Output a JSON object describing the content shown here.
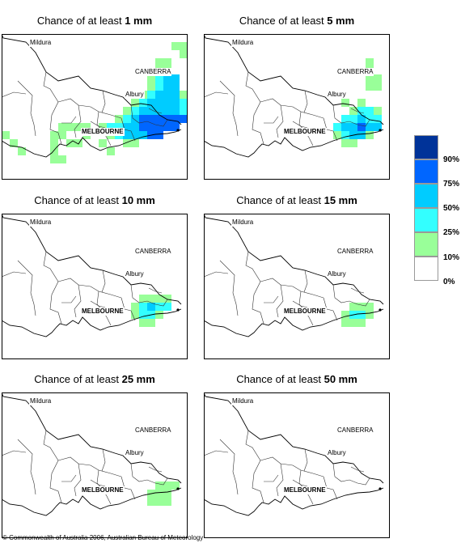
{
  "panels": [
    {
      "title_prefix": "Chance of at least ",
      "amount": "1 mm",
      "cells": [
        [
          21,
          1,
          0
        ],
        [
          22,
          1,
          0
        ],
        [
          22,
          2,
          0
        ],
        [
          19,
          3,
          0
        ],
        [
          20,
          3,
          0
        ],
        [
          19,
          4,
          0
        ],
        [
          20,
          4,
          0
        ],
        [
          18,
          5,
          0
        ],
        [
          18,
          6,
          0
        ],
        [
          19,
          5,
          1
        ],
        [
          20,
          5,
          2
        ],
        [
          21,
          5,
          2
        ],
        [
          19,
          6,
          1
        ],
        [
          20,
          6,
          2
        ],
        [
          21,
          6,
          2
        ],
        [
          17,
          7,
          0
        ],
        [
          18,
          7,
          1
        ],
        [
          19,
          7,
          2
        ],
        [
          20,
          7,
          2
        ],
        [
          21,
          7,
          2
        ],
        [
          22,
          7,
          0
        ],
        [
          16,
          8,
          0
        ],
        [
          17,
          8,
          1
        ],
        [
          18,
          8,
          2
        ],
        [
          19,
          8,
          2
        ],
        [
          20,
          8,
          2
        ],
        [
          21,
          8,
          2
        ],
        [
          22,
          8,
          1
        ],
        [
          15,
          9,
          0
        ],
        [
          16,
          9,
          1
        ],
        [
          17,
          9,
          2
        ],
        [
          18,
          9,
          2
        ],
        [
          19,
          9,
          2
        ],
        [
          20,
          9,
          2
        ],
        [
          21,
          9,
          2
        ],
        [
          22,
          9,
          1
        ],
        [
          14,
          10,
          0
        ],
        [
          15,
          10,
          1
        ],
        [
          16,
          10,
          2
        ],
        [
          17,
          10,
          3
        ],
        [
          18,
          10,
          3
        ],
        [
          19,
          10,
          3
        ],
        [
          20,
          10,
          3
        ],
        [
          21,
          10,
          3
        ],
        [
          22,
          10,
          3
        ],
        [
          7,
          11,
          0
        ],
        [
          8,
          11,
          0
        ],
        [
          9,
          11,
          0
        ],
        [
          10,
          11,
          0
        ],
        [
          12,
          11,
          0
        ],
        [
          13,
          11,
          1
        ],
        [
          14,
          11,
          1
        ],
        [
          15,
          11,
          2
        ],
        [
          16,
          11,
          2
        ],
        [
          17,
          11,
          3
        ],
        [
          18,
          11,
          3
        ],
        [
          19,
          11,
          3
        ],
        [
          20,
          11,
          3
        ],
        [
          21,
          11,
          3
        ],
        [
          0,
          12,
          0
        ],
        [
          6,
          12,
          0
        ],
        [
          7,
          12,
          0
        ],
        [
          10,
          12,
          0
        ],
        [
          13,
          12,
          0
        ],
        [
          14,
          12,
          1
        ],
        [
          15,
          12,
          2
        ],
        [
          16,
          12,
          2
        ],
        [
          17,
          12,
          2
        ],
        [
          18,
          12,
          3
        ],
        [
          19,
          12,
          3
        ],
        [
          1,
          13,
          0
        ],
        [
          6,
          13,
          0
        ],
        [
          8,
          13,
          0
        ],
        [
          9,
          13,
          0
        ],
        [
          12,
          13,
          0
        ],
        [
          15,
          13,
          0
        ],
        [
          16,
          13,
          0
        ],
        [
          2,
          14,
          0
        ],
        [
          6,
          14,
          0
        ],
        [
          13,
          14,
          0
        ],
        [
          6,
          15,
          0
        ],
        [
          7,
          15,
          0
        ]
      ]
    },
    {
      "title_prefix": "Chance of at least ",
      "amount": "5 mm",
      "cells": [
        [
          20,
          3,
          0
        ],
        [
          20,
          4,
          0
        ],
        [
          20,
          5,
          0
        ],
        [
          21,
          5,
          0
        ],
        [
          20,
          6,
          0
        ],
        [
          21,
          6,
          0
        ],
        [
          17,
          8,
          0
        ],
        [
          19,
          8,
          0
        ],
        [
          18,
          9,
          0
        ],
        [
          19,
          9,
          1
        ],
        [
          20,
          9,
          1
        ],
        [
          21,
          9,
          0
        ],
        [
          17,
          10,
          1
        ],
        [
          18,
          10,
          1
        ],
        [
          19,
          10,
          2
        ],
        [
          20,
          10,
          1
        ],
        [
          21,
          10,
          1
        ],
        [
          16,
          11,
          1
        ],
        [
          17,
          11,
          2
        ],
        [
          18,
          11,
          2
        ],
        [
          19,
          11,
          3
        ],
        [
          20,
          11,
          2
        ],
        [
          21,
          11,
          2
        ],
        [
          16,
          12,
          0
        ],
        [
          17,
          12,
          1
        ],
        [
          18,
          12,
          2
        ],
        [
          19,
          12,
          2
        ],
        [
          20,
          12,
          0
        ],
        [
          17,
          13,
          0
        ],
        [
          18,
          13,
          0
        ]
      ]
    },
    {
      "title_prefix": "Chance of at least ",
      "amount": "10 mm",
      "cells": [
        [
          17,
          10,
          0
        ],
        [
          18,
          10,
          0
        ],
        [
          19,
          10,
          0
        ],
        [
          20,
          10,
          0
        ],
        [
          16,
          11,
          0
        ],
        [
          17,
          11,
          1
        ],
        [
          18,
          11,
          2
        ],
        [
          19,
          11,
          1
        ],
        [
          20,
          11,
          1
        ],
        [
          16,
          12,
          0
        ],
        [
          17,
          12,
          1
        ],
        [
          18,
          12,
          1
        ],
        [
          19,
          12,
          0
        ],
        [
          17,
          13,
          0
        ],
        [
          18,
          13,
          0
        ]
      ]
    },
    {
      "title_prefix": "Chance of at least ",
      "amount": "15 mm",
      "cells": [
        [
          18,
          11,
          0
        ],
        [
          19,
          11,
          0
        ],
        [
          20,
          11,
          0
        ],
        [
          17,
          12,
          0
        ],
        [
          18,
          12,
          1
        ],
        [
          19,
          12,
          1
        ],
        [
          20,
          12,
          0
        ],
        [
          17,
          13,
          0
        ],
        [
          18,
          13,
          0
        ],
        [
          19,
          13,
          0
        ]
      ]
    },
    {
      "title_prefix": "Chance of at least ",
      "amount": "25 mm",
      "cells": [
        [
          19,
          11,
          0
        ],
        [
          20,
          11,
          0
        ],
        [
          21,
          11,
          0
        ],
        [
          18,
          12,
          0
        ],
        [
          19,
          12,
          0
        ],
        [
          20,
          12,
          0
        ],
        [
          18,
          13,
          0
        ],
        [
          19,
          13,
          0
        ],
        [
          20,
          13,
          0
        ]
      ]
    },
    {
      "title_prefix": "Chance of at least ",
      "amount": "50 mm",
      "cells": []
    }
  ],
  "places": {
    "mildura": "Mildura",
    "canberra": "CANBERRA",
    "albury": "Albury",
    "melbourne": "MELBOURNE"
  },
  "legend": {
    "colors": [
      "#ffffff",
      "#99ff99",
      "#33ffff",
      "#00ccff",
      "#0066ff",
      "#003399"
    ],
    "labels": [
      "0%",
      "10%",
      "25%",
      "50%",
      "75%",
      "90%"
    ]
  },
  "copyright": "© Commonwealth of Australia 2006, Australian Bureau of Meteorology"
}
